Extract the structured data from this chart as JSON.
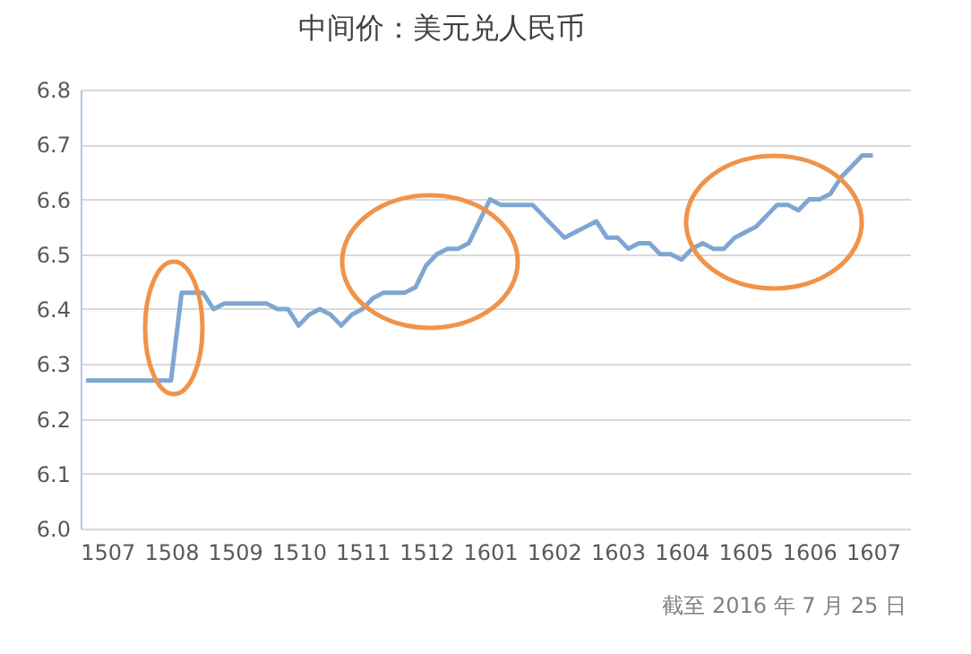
{
  "chart_data": {
    "type": "line",
    "title": "中间价：美元兑人民币",
    "annotations": [
      "截至 2016 年 7 月 25 日"
    ],
    "categories": [
      null,
      null,
      "1507",
      null,
      null,
      null,
      null,
      null,
      "1508",
      null,
      null,
      null,
      null,
      null,
      "1509",
      null,
      null,
      null,
      null,
      null,
      "1510",
      null,
      null,
      null,
      null,
      null,
      "1511",
      null,
      null,
      null,
      null,
      null,
      "1512",
      null,
      null,
      null,
      null,
      null,
      "1601",
      null,
      null,
      null,
      null,
      null,
      "1602",
      null,
      null,
      null,
      null,
      null,
      "1603",
      null,
      null,
      null,
      null,
      null,
      "1604",
      null,
      null,
      null,
      null,
      null,
      "1605",
      null,
      null,
      null,
      null,
      null,
      "1606",
      null,
      null,
      null,
      null,
      null,
      "1607",
      null,
      null,
      null
    ],
    "series": [
      {
        "color": "#7fa6d3",
        "values": [
          6.27,
          6.27,
          6.27,
          6.27,
          6.27,
          6.27,
          6.27,
          6.27,
          6.27,
          6.43,
          6.43,
          6.43,
          6.4,
          6.41,
          6.41,
          6.41,
          6.41,
          6.41,
          6.4,
          6.4,
          6.37,
          6.39,
          6.4,
          6.39,
          6.37,
          6.39,
          6.4,
          6.42,
          6.43,
          6.43,
          6.43,
          6.44,
          6.48,
          6.5,
          6.51,
          6.51,
          6.52,
          6.56,
          6.6,
          6.59,
          6.59,
          6.59,
          6.59,
          6.57,
          6.55,
          6.53,
          6.54,
          6.55,
          6.56,
          6.53,
          6.53,
          6.51,
          6.52,
          6.52,
          6.5,
          6.5,
          6.49,
          6.51,
          6.52,
          6.51,
          6.51,
          6.53,
          6.54,
          6.55,
          6.57,
          6.59,
          6.59,
          6.58,
          6.6,
          6.6,
          6.61,
          6.64,
          6.66,
          6.68,
          6.68,
          null,
          null,
          null
        ]
      }
    ],
    "ylim": [
      6.0,
      6.8
    ],
    "yticks": [
      {
        "value": 6,
        "label": "6.0"
      },
      6.1,
      6.2,
      6.3,
      6.4,
      6.5,
      6.6,
      6.7,
      6.8
    ],
    "grid": "y",
    "legend": false,
    "marker": "none",
    "line_style": "solid"
  }
}
